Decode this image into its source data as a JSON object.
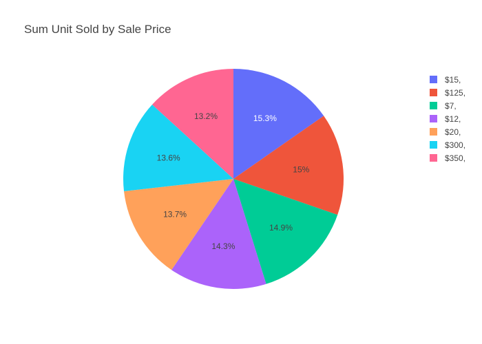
{
  "chart_data": {
    "type": "pie",
    "title": "Sum Unit Sold by Sale Price",
    "sort": "descending",
    "direction": "clockwise",
    "start_angle": "12 o'clock",
    "legend_position": "top-right",
    "slices": [
      {
        "label": "$15,",
        "percent": 15.3,
        "percent_label": "15.3%",
        "color": "#636efa",
        "text_color": "#ffffff"
      },
      {
        "label": "$125,",
        "percent": 15.0,
        "percent_label": "15%",
        "color": "#ef553b",
        "text_color": "#444444"
      },
      {
        "label": "$7,",
        "percent": 14.9,
        "percent_label": "14.9%",
        "color": "#00cc96",
        "text_color": "#444444"
      },
      {
        "label": "$12,",
        "percent": 14.3,
        "percent_label": "14.3%",
        "color": "#ab63fa",
        "text_color": "#444444"
      },
      {
        "label": "$20,",
        "percent": 13.7,
        "percent_label": "13.7%",
        "color": "#ffa15a",
        "text_color": "#444444"
      },
      {
        "label": "$300,",
        "percent": 13.6,
        "percent_label": "13.6%",
        "color": "#19d3f3",
        "text_color": "#444444"
      },
      {
        "label": "$350,",
        "percent": 13.2,
        "percent_label": "13.2%",
        "color": "#ff6692",
        "text_color": "#444444"
      }
    ]
  }
}
